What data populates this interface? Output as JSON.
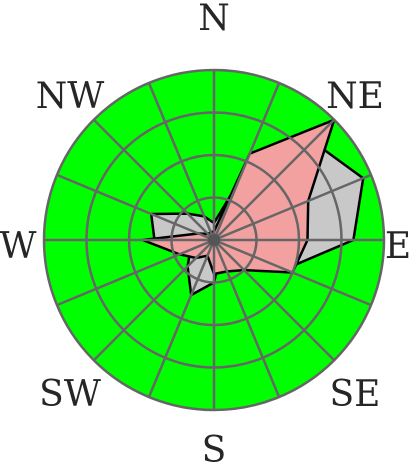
{
  "chart_data": {
    "type": "polar-area",
    "directions": [
      "N",
      "NNE",
      "NE",
      "ENE",
      "E",
      "ESE",
      "SE",
      "SSE",
      "S",
      "SSW",
      "SW",
      "WSW",
      "W",
      "WNW",
      "NW",
      "NNW"
    ],
    "direction_labels": [
      "N",
      "NE",
      "E",
      "SE",
      "S",
      "SW",
      "W",
      "NW"
    ],
    "rings": 4,
    "grid": true,
    "colors": {
      "background": "#00ff00",
      "grid": "#666666",
      "series_a": "#c8c8c8",
      "series_b": "#f2a0a0",
      "outline": "#000000"
    },
    "series": [
      {
        "values": [
          0.1,
          0.35,
          0.82,
          0.95,
          0.82,
          0.45,
          0.22,
          0.1,
          0.25,
          0.35,
          0.22,
          0.15,
          0.35,
          0.4,
          0.22,
          0.15
        ]
      },
      {
        "values": [
          0.05,
          0.55,
          1.0,
          0.6,
          0.55,
          0.5,
          0.25,
          0.2,
          0.2,
          0.1,
          0.15,
          0.22,
          0.42,
          0.1,
          0.05,
          0.05
        ]
      }
    ]
  }
}
